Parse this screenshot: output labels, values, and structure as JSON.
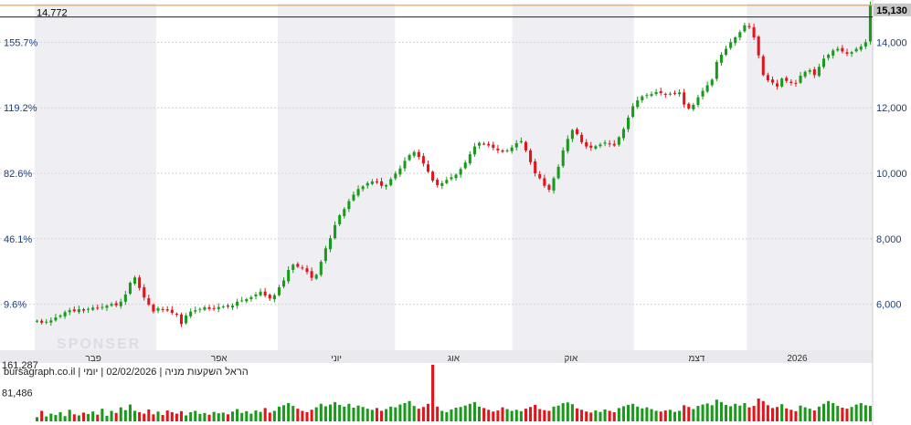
{
  "chart_data": {
    "type": "candlestick",
    "title": "הראל השקעות מניה | 02/02/2026 | יומי",
    "source_label": "bursagraph.co.il",
    "watermark": "SPONSER",
    "ylim": [
      4600,
      15180
    ],
    "y_ticks_right": [
      "6,000",
      "8,000",
      "10,000",
      "12,000",
      "14,000"
    ],
    "y_ticks_right_values": [
      6000,
      8000,
      10000,
      12000,
      14000
    ],
    "y_ticks_left": [
      "9.6%",
      "46.1%",
      "82.6%",
      "119.2%",
      "155.7%"
    ],
    "x_labels": [
      "פבר",
      "אפר",
      "יוני",
      "אוג",
      "אוק",
      "דצמ",
      "2026"
    ],
    "x_label_positions": [
      0.07,
      0.22,
      0.36,
      0.5,
      0.64,
      0.79,
      0.91
    ],
    "last_price": "15,130",
    "last_price_value": 15130,
    "reference_price": "14,772",
    "reference_price_value": 14772,
    "volume_ticks": [
      "161,287",
      "81,486"
    ],
    "volume_tick_values": [
      161287,
      81486
    ],
    "volume_max": 161287,
    "colors": {
      "up": "#1a9a1a",
      "down": "#e0161b",
      "last_price_box": "#c7c7c7",
      "reference_line": "#ff9933",
      "band_shade": "#efeff3",
      "axis_text": "#1a3f7a",
      "grid": "#d0d0d8"
    },
    "closes": [
      5500,
      5440,
      5470,
      5510,
      5600,
      5660,
      5760,
      5820,
      5790,
      5850,
      5810,
      5860,
      5900,
      5880,
      5920,
      5960,
      6010,
      5970,
      6080,
      6300,
      6660,
      6820,
      6500,
      6210,
      5990,
      5780,
      5880,
      5850,
      5810,
      5740,
      5690,
      5400,
      5660,
      5780,
      5820,
      5860,
      5910,
      5860,
      5880,
      5920,
      5940,
      5930,
      5960,
      6080,
      6120,
      6160,
      6220,
      6300,
      6390,
      6270,
      6180,
      6280,
      6520,
      6730,
      7050,
      7210,
      7150,
      7100,
      6990,
      6810,
      6900,
      7300,
      7710,
      8020,
      8420,
      8720,
      8910,
      9150,
      9350,
      9520,
      9600,
      9700,
      9750,
      9730,
      9620,
      9640,
      9820,
      9990,
      10150,
      10380,
      10560,
      10650,
      10500,
      10300,
      10050,
      9780,
      9640,
      9700,
      9800,
      9880,
      9960,
      10130,
      10330,
      10580,
      10820,
      10930,
      10900,
      10850,
      10780,
      10700,
      10660,
      10700,
      10790,
      10920,
      10980,
      10700,
      10340,
      10000,
      9850,
      9620,
      9500,
      9850,
      10200,
      10700,
      11050,
      11320,
      11200,
      10950,
      10820,
      10780,
      10830,
      10880,
      10940,
      10900,
      10850,
      11100,
      11350,
      11700,
      12050,
      12230,
      12350,
      12390,
      12420,
      12480,
      12450,
      12400,
      12430,
      12440,
      12470,
      12100,
      11980,
      12090,
      12320,
      12520,
      12690,
      12860,
      13400,
      13620,
      13800,
      14000,
      14150,
      14310,
      14520,
      14460,
      14150,
      13600,
      13000,
      12840,
      12770,
      12650,
      12890,
      12820,
      12760,
      12740,
      12980,
      13100,
      13150,
      13000,
      13250,
      13500,
      13620,
      13750,
      13800,
      13720,
      13650,
      13700,
      13800,
      13870,
      14000,
      15130
    ],
    "volumes": [
      12000,
      30000,
      14000,
      22000,
      18000,
      26000,
      15000,
      33000,
      20000,
      17000,
      25000,
      21000,
      28000,
      19000,
      36000,
      16000,
      30000,
      24000,
      40000,
      32000,
      48000,
      30000,
      26000,
      22000,
      34000,
      20000,
      28000,
      18000,
      31000,
      26000,
      22000,
      29000,
      17000,
      26000,
      30000,
      21000,
      24000,
      19000,
      27000,
      23000,
      25000,
      20000,
      28000,
      35000,
      24000,
      29000,
      22000,
      31000,
      27000,
      38000,
      25000,
      30000,
      42000,
      46000,
      52000,
      44000,
      36000,
      30000,
      26000,
      33000,
      40000,
      50000,
      43000,
      48000,
      55000,
      47000,
      42000,
      50000,
      39000,
      45000,
      41000,
      36000,
      33000,
      38000,
      30000,
      35000,
      42000,
      40000,
      48000,
      52000,
      58000,
      44000,
      36000,
      41000,
      50000,
      161287,
      42000,
      30000,
      26000,
      34000,
      39000,
      41000,
      45000,
      50000,
      55000,
      42000,
      38000,
      33000,
      28000,
      31000,
      40000,
      35000,
      30000,
      33000,
      29000,
      36000,
      41000,
      47000,
      35000,
      32000,
      30000,
      42000,
      45000,
      52000,
      54000,
      49000,
      37000,
      33000,
      28000,
      25000,
      31000,
      27000,
      34000,
      30000,
      26000,
      38000,
      43000,
      47000,
      50000,
      42000,
      37000,
      40000,
      35000,
      30000,
      28000,
      31000,
      33000,
      27000,
      30000,
      46000,
      41000,
      35000,
      44000,
      48000,
      51000,
      46000,
      62000,
      55000,
      47000,
      43000,
      50000,
      45000,
      52000,
      40000,
      44000,
      65000,
      58000,
      46000,
      38000,
      41000,
      49000,
      37000,
      33000,
      29000,
      45000,
      40000,
      36000,
      31000,
      42000,
      50000,
      58000,
      52000,
      44000,
      39000,
      36000,
      41000,
      48000,
      52000,
      46000,
      44000
    ]
  }
}
